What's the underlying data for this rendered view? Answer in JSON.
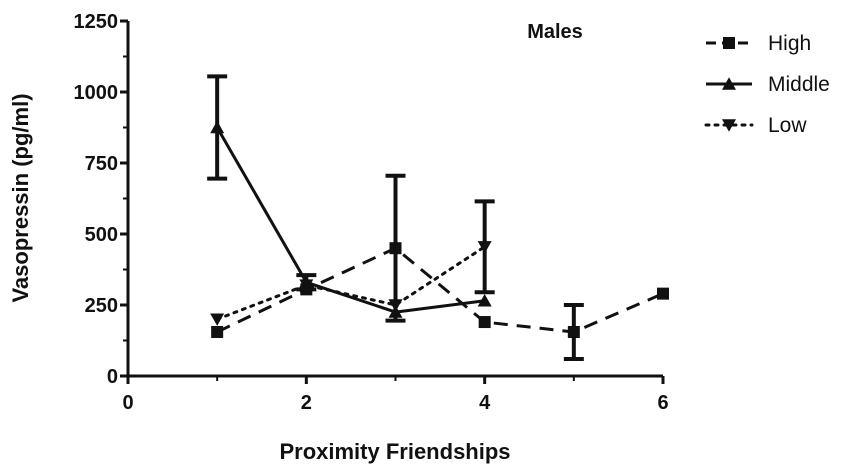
{
  "chart_data": {
    "type": "line",
    "title": "Males",
    "xlabel": "Proximity Friendships",
    "ylabel": "Vasopressin (pg/ml)",
    "xlim": [
      0,
      6
    ],
    "ylim": [
      0,
      1250
    ],
    "xticks": [
      "0",
      "2",
      "4",
      "6"
    ],
    "yticks": [
      "0",
      "250",
      "500",
      "750",
      "1000",
      "1250"
    ],
    "grid": false,
    "legend_position": "top-right, outside plot",
    "series": [
      {
        "name": "High",
        "marker": "square",
        "line_style": "dashed",
        "color": "#111111",
        "x": [
          1,
          2,
          3,
          4,
          5,
          6
        ],
        "y": [
          155,
          305,
          450,
          190,
          155,
          290
        ],
        "error": [
          null,
          null,
          255,
          null,
          95,
          null
        ]
      },
      {
        "name": "Middle",
        "marker": "triangle-up",
        "line_style": "solid",
        "color": "#111111",
        "x": [
          1,
          2,
          3,
          4
        ],
        "y": [
          875,
          330,
          225,
          265
        ],
        "error": [
          180,
          25,
          null,
          null
        ]
      },
      {
        "name": "Low",
        "marker": "triangle-down",
        "line_style": "dotted",
        "color": "#111111",
        "x": [
          1,
          2,
          3,
          4
        ],
        "y": [
          200,
          320,
          250,
          455
        ],
        "error": [
          null,
          null,
          null,
          160
        ]
      }
    ]
  }
}
